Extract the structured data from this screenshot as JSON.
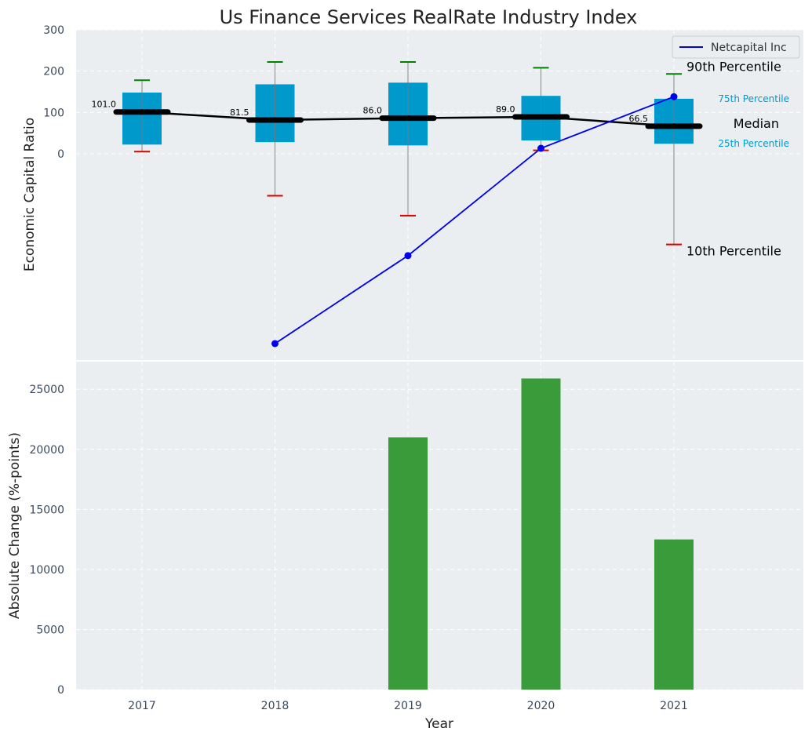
{
  "chart_data": [
    {
      "type": "box",
      "title": "Us Finance Services RealRate Industry Index",
      "xlabel": "",
      "ylabel": "Economic Capital Ratio",
      "ylim": [
        -500,
        300
      ],
      "yticks": [
        0,
        100,
        200,
        300
      ],
      "categories": [
        "2017",
        "2018",
        "2019",
        "2020",
        "2021"
      ],
      "boxes": [
        {
          "year": "2017",
          "p10": 5,
          "q1": 22,
          "median": 101.0,
          "q3": 148,
          "p90": 178,
          "median_label": "101.0"
        },
        {
          "year": "2018",
          "p10": -102,
          "q1": 28,
          "median": 81.5,
          "q3": 168,
          "p90": 222,
          "median_label": "81.5"
        },
        {
          "year": "2019",
          "p10": -150,
          "q1": 20,
          "median": 86.0,
          "q3": 172,
          "p90": 222,
          "median_label": "86.0"
        },
        {
          "year": "2020",
          "p10": 8,
          "q1": 32,
          "median": 89.0,
          "q3": 140,
          "p90": 208,
          "median_label": "89.0"
        },
        {
          "year": "2021",
          "p10": -220,
          "q1": 24,
          "median": 66.5,
          "q3": 133,
          "p90": 193,
          "median_label": "66.5"
        }
      ],
      "series": [
        {
          "name": "Netcapital Inc",
          "color": "#0000ee",
          "points": [
            {
              "x": "2018",
              "y": -460
            },
            {
              "x": "2019",
              "y": -247
            },
            {
              "x": "2020",
              "y": 13
            },
            {
              "x": "2021",
              "y": 138
            }
          ]
        }
      ],
      "annotations": {
        "p90": "90th Percentile",
        "q3": "75th Percentile",
        "median": "Median",
        "q1": "25th Percentile",
        "p10": "10th Percentile"
      },
      "legend": {
        "position": "top-right",
        "entries": [
          "Netcapital Inc"
        ]
      },
      "grid": true
    },
    {
      "type": "bar",
      "xlabel": "Year",
      "ylabel": "Absolute Change (%-points)",
      "ylim": [
        0,
        27300
      ],
      "yticks": [
        0,
        5000,
        10000,
        15000,
        20000,
        25000
      ],
      "categories": [
        "2017",
        "2018",
        "2019",
        "2020",
        "2021"
      ],
      "values": [
        0,
        0,
        21000,
        25900,
        12500
      ],
      "color": "#3a9b3a",
      "grid": true
    }
  ],
  "colors": {
    "panel_bg": "#eaeef0",
    "box_fill": "#0099cc",
    "median_line": "#000000",
    "p90_cap": "#008000",
    "p10_cap": "#dd0000",
    "whisker": "#888888",
    "grid": "#ffffff"
  }
}
